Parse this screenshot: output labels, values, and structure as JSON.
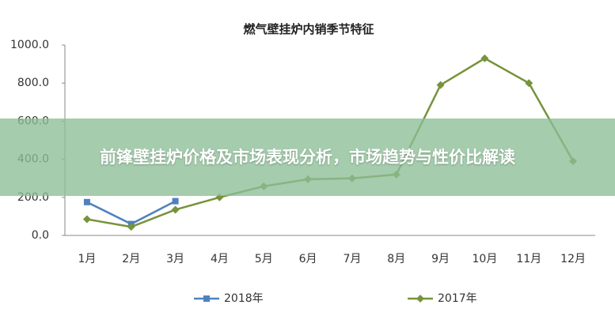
{
  "chart_data": {
    "type": "line",
    "title": "燃气壁挂炉内销季节特征",
    "categories": [
      "1月",
      "2月",
      "3月",
      "4月",
      "5月",
      "6月",
      "7月",
      "8月",
      "9月",
      "10月",
      "11月",
      "12月"
    ],
    "series": [
      {
        "name": "2018年",
        "color": "#4f81bd",
        "marker": "square",
        "values": [
          175,
          60,
          180,
          null,
          null,
          null,
          null,
          null,
          null,
          null,
          null,
          null
        ]
      },
      {
        "name": "2017年",
        "color": "#77933c",
        "marker": "diamond",
        "values": [
          85,
          45,
          135,
          200,
          258,
          295,
          300,
          320,
          790,
          930,
          800,
          390
        ]
      }
    ],
    "ylim": [
      0,
      1000
    ],
    "yticks": [
      {
        "value": 0,
        "label": "0.0"
      },
      {
        "value": 200,
        "label": "200.0"
      },
      {
        "value": 400,
        "label": "400.0"
      },
      {
        "value": 600,
        "label": "600.0"
      },
      {
        "value": 800,
        "label": "800.0"
      },
      {
        "value": 1000,
        "label": "1000.0"
      }
    ],
    "grid": false,
    "legend": "bottom"
  },
  "overlay": {
    "text": "前锋壁挂炉价格及市场表现分析，市场趋势与性价比解读"
  }
}
